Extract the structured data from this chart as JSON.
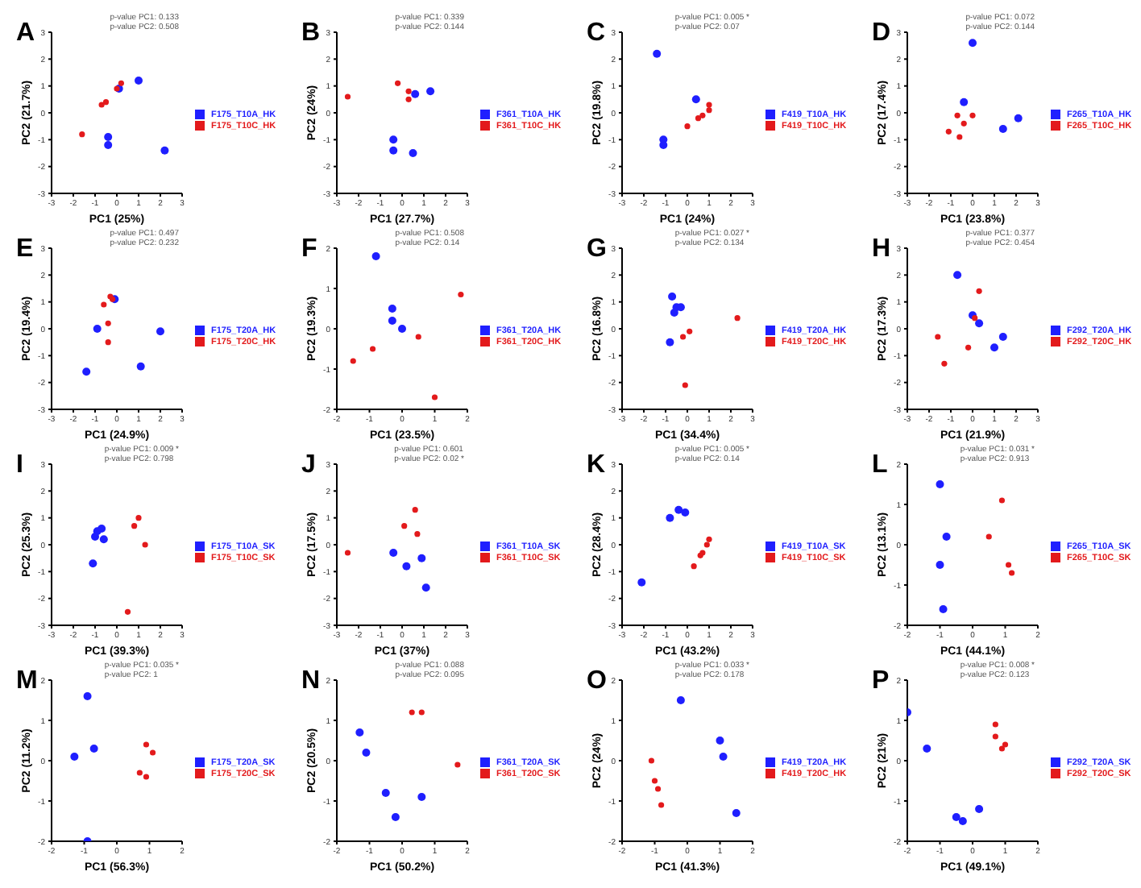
{
  "chart_data": [
    {
      "type": "scatter",
      "title": "A",
      "xlabel": "PC1 (25%)",
      "ylabel": "PC2 (21.7%)",
      "annotations": [
        "p-value PC1: 0.133",
        "p-value PC2: 0.508"
      ],
      "xlim": [
        -3,
        3
      ],
      "ylim": [
        -3,
        3
      ],
      "xticks": [
        -3,
        -2,
        -1,
        0,
        1,
        2,
        3
      ],
      "yticks": [
        -3,
        -2,
        -1,
        0,
        1,
        2,
        3
      ],
      "legend": "right",
      "marker": "circle",
      "series": [
        {
          "name": "F175_T10A_HK",
          "color": "#1f1fff",
          "x": [
            1,
            2.2,
            -0.4,
            -0.4,
            0.1
          ],
          "values": [
            1.2,
            -1.4,
            -0.9,
            -1.2,
            0.9
          ]
        },
        {
          "name": "F175_T10C_HK",
          "color": "#e31a1c",
          "x": [
            -1.6,
            -0.7,
            -0.5,
            0,
            0.2
          ],
          "values": [
            -0.8,
            0.3,
            0.4,
            0.9,
            1.1
          ]
        }
      ]
    },
    {
      "type": "scatter",
      "title": "B",
      "xlabel": "PC1 (27.7%)",
      "ylabel": "PC2 (24%)",
      "annotations": [
        "p-value PC1: 0.339",
        "p-value PC2: 0.144"
      ],
      "xlim": [
        -3,
        3
      ],
      "ylim": [
        -3,
        3
      ],
      "xticks": [
        -3,
        -2,
        -1,
        0,
        1,
        2,
        3
      ],
      "yticks": [
        -3,
        -2,
        -1,
        0,
        1,
        2,
        3
      ],
      "legend": "right",
      "marker": "circle",
      "series": [
        {
          "name": "F361_T10A_HK",
          "color": "#1f1fff",
          "x": [
            1.3,
            0.5,
            -0.4,
            -0.4,
            0.6
          ],
          "values": [
            0.8,
            -1.5,
            -1,
            -1.4,
            0.7
          ]
        },
        {
          "name": "F361_T10C_HK",
          "color": "#e31a1c",
          "x": [
            -2.5,
            -0.2,
            0.3,
            0.3
          ],
          "values": [
            0.6,
            1.1,
            0.8,
            0.5
          ]
        }
      ]
    },
    {
      "type": "scatter",
      "title": "C",
      "xlabel": "PC1 (24%)",
      "ylabel": "PC2 (19.8%)",
      "annotations": [
        "p-value PC1: 0.005 *",
        "p-value PC2: 0.07"
      ],
      "xlim": [
        -3,
        3
      ],
      "ylim": [
        -3,
        3
      ],
      "xticks": [
        -3,
        -2,
        -1,
        0,
        1,
        2,
        3
      ],
      "yticks": [
        -3,
        -2,
        -1,
        0,
        1,
        2,
        3
      ],
      "legend": "right",
      "marker": "circle",
      "series": [
        {
          "name": "F419_T10A_HK",
          "color": "#1f1fff",
          "x": [
            -1.4,
            0.4,
            -1.1,
            -1.1
          ],
          "values": [
            2.2,
            0.5,
            -1,
            -1.2
          ]
        },
        {
          "name": "F419_T10C_HK",
          "color": "#e31a1c",
          "x": [
            0,
            0.5,
            1,
            1,
            0.7
          ],
          "values": [
            -0.5,
            -0.2,
            0.1,
            0.3,
            -0.1
          ]
        }
      ]
    },
    {
      "type": "scatter",
      "title": "D",
      "xlabel": "PC1 (23.8%)",
      "ylabel": "PC2 (17.4%)",
      "annotations": [
        "p-value PC1: 0.072",
        "p-value PC2: 0.144"
      ],
      "xlim": [
        -3,
        3
      ],
      "ylim": [
        -3,
        3
      ],
      "xticks": [
        -3,
        -2,
        -1,
        0,
        1,
        2,
        3
      ],
      "yticks": [
        -3,
        -2,
        -1,
        0,
        1,
        2,
        3
      ],
      "legend": "right",
      "marker": "circle",
      "series": [
        {
          "name": "F265_T10A_HK",
          "color": "#1f1fff",
          "x": [
            0,
            2.1,
            1.4,
            -0.4
          ],
          "values": [
            2.6,
            -0.2,
            -0.6,
            0.4
          ]
        },
        {
          "name": "F265_T10C_HK",
          "color": "#e31a1c",
          "x": [
            -1.1,
            -0.7,
            -0.6,
            0,
            -0.4
          ],
          "values": [
            -0.7,
            -0.1,
            -0.9,
            -0.1,
            -0.4
          ]
        }
      ]
    },
    {
      "type": "scatter",
      "title": "E",
      "xlabel": "PC1 (24.9%)",
      "ylabel": "PC2 (19.4%)",
      "annotations": [
        "p-value PC1: 0.497",
        "p-value PC2: 0.232"
      ],
      "xlim": [
        -3,
        3
      ],
      "ylim": [
        -3,
        3
      ],
      "xticks": [
        -3,
        -2,
        -1,
        0,
        1,
        2,
        3
      ],
      "yticks": [
        -3,
        -2,
        -1,
        0,
        1,
        2,
        3
      ],
      "legend": "right",
      "marker": "circle",
      "series": [
        {
          "name": "F175_T20A_HK",
          "color": "#1f1fff",
          "x": [
            -1.4,
            2,
            1.1,
            -0.9,
            -0.1
          ],
          "values": [
            -1.6,
            -0.1,
            -1.4,
            0,
            1.1
          ]
        },
        {
          "name": "F175_T20C_HK",
          "color": "#e31a1c",
          "x": [
            -0.6,
            -0.3,
            -0.4,
            -0.4,
            -0.2
          ],
          "values": [
            0.9,
            1.2,
            -0.5,
            0.2,
            1.1
          ]
        }
      ]
    },
    {
      "type": "scatter",
      "title": "F",
      "xlabel": "PC1 (23.5%)",
      "ylabel": "PC2 (19.3%)",
      "annotations": [
        "p-value PC1: 0.508",
        "p-value PC2: 0.14"
      ],
      "xlim": [
        -2,
        2
      ],
      "ylim": [
        -2,
        2
      ],
      "xticks": [
        -2,
        -1,
        0,
        1,
        2
      ],
      "yticks": [
        -2,
        -1,
        0,
        1,
        2
      ],
      "legend": "right",
      "marker": "circle",
      "series": [
        {
          "name": "F361_T20A_HK",
          "color": "#1f1fff",
          "x": [
            -0.8,
            -0.3,
            0,
            -0.3
          ],
          "values": [
            1.8,
            0.2,
            0,
            0.5
          ]
        },
        {
          "name": "F361_T20C_HK",
          "color": "#e31a1c",
          "x": [
            -1.5,
            -0.9,
            0.5,
            1.8,
            1
          ],
          "values": [
            -0.8,
            -0.5,
            -0.2,
            0.85,
            -1.7
          ]
        }
      ]
    },
    {
      "type": "scatter",
      "title": "G",
      "xlabel": "PC1 (34.4%)",
      "ylabel": "PC2 (16.8%)",
      "annotations": [
        "p-value PC1: 0.027 *",
        "p-value PC2: 0.134"
      ],
      "xlim": [
        -3,
        3
      ],
      "ylim": [
        -3,
        3
      ],
      "xticks": [
        -3,
        -2,
        -1,
        0,
        1,
        2,
        3
      ],
      "yticks": [
        -3,
        -2,
        -1,
        0,
        1,
        2,
        3
      ],
      "legend": "right",
      "marker": "circle",
      "series": [
        {
          "name": "F419_T20A_HK",
          "color": "#1f1fff",
          "x": [
            -0.7,
            -0.5,
            -0.3,
            -0.8,
            -0.6
          ],
          "values": [
            1.2,
            0.8,
            0.8,
            -0.5,
            0.6
          ]
        },
        {
          "name": "F419_T20C_HK",
          "color": "#e31a1c",
          "x": [
            -0.2,
            0.1,
            2.3,
            -0.1
          ],
          "values": [
            -0.3,
            -0.1,
            0.4,
            -2.1
          ]
        }
      ]
    },
    {
      "type": "scatter",
      "title": "H",
      "xlabel": "PC1 (21.9%)",
      "ylabel": "PC2 (17.3%)",
      "annotations": [
        "p-value PC1: 0.377",
        "p-value PC2: 0.454"
      ],
      "xlim": [
        -3,
        3
      ],
      "ylim": [
        -3,
        3
      ],
      "xticks": [
        -3,
        -2,
        -1,
        0,
        1,
        2,
        3
      ],
      "yticks": [
        -3,
        -2,
        -1,
        0,
        1,
        2,
        3
      ],
      "legend": "right",
      "marker": "circle",
      "series": [
        {
          "name": "F292_T20A_HK",
          "color": "#1f1fff",
          "x": [
            -0.7,
            1.4,
            1,
            0,
            0.3
          ],
          "values": [
            2,
            -0.3,
            -0.7,
            0.5,
            0.2
          ]
        },
        {
          "name": "F292_T20C_HK",
          "color": "#e31a1c",
          "x": [
            -1.6,
            -1.3,
            0.3,
            -0.2,
            0.1
          ],
          "values": [
            -0.3,
            -1.3,
            1.4,
            -0.7,
            0.4
          ]
        }
      ]
    },
    {
      "type": "scatter",
      "title": "I",
      "xlabel": "PC1 (39.3%)",
      "ylabel": "PC2 (25.3%)",
      "annotations": [
        "p-value PC1: 0.009 *",
        "p-value PC2: 0.798"
      ],
      "xlim": [
        -3,
        3
      ],
      "ylim": [
        -3,
        3
      ],
      "xticks": [
        -3,
        -2,
        -1,
        0,
        1,
        2,
        3
      ],
      "yticks": [
        -3,
        -2,
        -1,
        0,
        1,
        2,
        3
      ],
      "legend": "right",
      "marker": "circle",
      "series": [
        {
          "name": "F175_T10A_SK",
          "color": "#1f1fff",
          "x": [
            -1.1,
            -0.9,
            -0.7,
            -0.6,
            -1
          ],
          "values": [
            -0.7,
            0.5,
            0.6,
            0.2,
            0.3
          ]
        },
        {
          "name": "F175_T10C_SK",
          "color": "#e31a1c",
          "x": [
            0.5,
            1.3,
            1,
            0.8
          ],
          "values": [
            -2.5,
            0,
            1,
            0.7
          ]
        }
      ]
    },
    {
      "type": "scatter",
      "title": "J",
      "xlabel": "PC1 (37%)",
      "ylabel": "PC2 (17.5%)",
      "annotations": [
        "p-value PC1: 0.601",
        "p-value PC2: 0.02 *"
      ],
      "xlim": [
        -3,
        3
      ],
      "ylim": [
        -3,
        3
      ],
      "xticks": [
        -3,
        -2,
        -1,
        0,
        1,
        2,
        3
      ],
      "yticks": [
        -3,
        -2,
        -1,
        0,
        1,
        2,
        3
      ],
      "legend": "right",
      "marker": "circle",
      "series": [
        {
          "name": "F361_T10A_SK",
          "color": "#1f1fff",
          "x": [
            -0.4,
            0.9,
            1.1,
            0.2
          ],
          "values": [
            -0.3,
            -0.5,
            -1.6,
            -0.8
          ]
        },
        {
          "name": "F361_T10C_SK",
          "color": "#e31a1c",
          "x": [
            -2.5,
            0.6,
            0.7,
            0.1
          ],
          "values": [
            -0.3,
            1.3,
            0.4,
            0.7
          ]
        }
      ]
    },
    {
      "type": "scatter",
      "title": "K",
      "xlabel": "PC1 (43.2%)",
      "ylabel": "PC2 (28.4%)",
      "annotations": [
        "p-value PC1: 0.005 *",
        "p-value PC2: 0.14"
      ],
      "xlim": [
        -3,
        3
      ],
      "ylim": [
        -3,
        3
      ],
      "xticks": [
        -3,
        -2,
        -1,
        0,
        1,
        2,
        3
      ],
      "yticks": [
        -3,
        -2,
        -1,
        0,
        1,
        2,
        3
      ],
      "legend": "right",
      "marker": "circle",
      "series": [
        {
          "name": "F419_T10A_SK",
          "color": "#1f1fff",
          "x": [
            -2.1,
            -0.8,
            -0.4,
            -0.1
          ],
          "values": [
            -1.4,
            1,
            1.3,
            1.2
          ]
        },
        {
          "name": "F419_T10C_SK",
          "color": "#e31a1c",
          "x": [
            0.3,
            0.6,
            0.9,
            1,
            0.7
          ],
          "values": [
            -0.8,
            -0.4,
            0,
            0.2,
            -0.3
          ]
        }
      ]
    },
    {
      "type": "scatter",
      "title": "L",
      "xlabel": "PC1 (44.1%)",
      "ylabel": "PC2 (13.1%)",
      "annotations": [
        "p-value PC1: 0.031 *",
        "p-value PC2: 0.913"
      ],
      "xlim": [
        -2,
        2
      ],
      "ylim": [
        -2,
        2
      ],
      "xticks": [
        -2,
        -1,
        0,
        1,
        2
      ],
      "yticks": [
        -2,
        -1,
        0,
        1,
        2
      ],
      "legend": "right",
      "marker": "circle",
      "series": [
        {
          "name": "F265_T10A_SK",
          "color": "#1f1fff",
          "x": [
            -1,
            -0.8,
            -1,
            -0.9
          ],
          "values": [
            1.5,
            0.2,
            -0.5,
            -1.6
          ]
        },
        {
          "name": "F265_T10C_SK",
          "color": "#e31a1c",
          "x": [
            0.5,
            0.9,
            1.1,
            1.2
          ],
          "values": [
            0.2,
            1.1,
            -0.5,
            -0.7
          ]
        }
      ]
    },
    {
      "type": "scatter",
      "title": "M",
      "xlabel": "PC1 (56.3%)",
      "ylabel": "PC2 (11.2%)",
      "annotations": [
        "p-value PC1: 0.035 *",
        "p-value PC2: 1"
      ],
      "xlim": [
        -2,
        2
      ],
      "ylim": [
        -2,
        2
      ],
      "xticks": [
        -2,
        -1,
        0,
        1,
        2
      ],
      "yticks": [
        -2,
        -1,
        0,
        1,
        2
      ],
      "legend": "right",
      "marker": "circle",
      "series": [
        {
          "name": "F175_T20A_SK",
          "color": "#1f1fff",
          "x": [
            -1.3,
            -0.9,
            -0.7,
            -0.9
          ],
          "values": [
            0.1,
            1.6,
            0.3,
            -2
          ]
        },
        {
          "name": "F175_T20C_SK",
          "color": "#e31a1c",
          "x": [
            0.9,
            0.7,
            1.1,
            0.9
          ],
          "values": [
            0.4,
            -0.3,
            0.2,
            -0.4
          ]
        }
      ]
    },
    {
      "type": "scatter",
      "title": "N",
      "xlabel": "PC1 (50.2%)",
      "ylabel": "PC2 (20.5%)",
      "annotations": [
        "p-value PC1: 0.088",
        "p-value PC2: 0.095"
      ],
      "xlim": [
        -2,
        2
      ],
      "ylim": [
        -2,
        2
      ],
      "xticks": [
        -2,
        -1,
        0,
        1,
        2
      ],
      "yticks": [
        -2,
        -1,
        0,
        1,
        2
      ],
      "legend": "right",
      "marker": "circle",
      "series": [
        {
          "name": "F361_T20A_SK",
          "color": "#1f1fff",
          "x": [
            -1.3,
            -1.1,
            -0.5,
            -0.2,
            0.6
          ],
          "values": [
            0.7,
            0.2,
            -0.8,
            -1.4,
            -0.9
          ]
        },
        {
          "name": "F361_T20C_SK",
          "color": "#e31a1c",
          "x": [
            0.3,
            0.6,
            1.7
          ],
          "values": [
            1.2,
            1.2,
            -0.1
          ]
        }
      ]
    },
    {
      "type": "scatter",
      "title": "O",
      "xlabel": "PC1 (41.3%)",
      "ylabel": "PC2 (24%)",
      "annotations": [
        "p-value PC1: 0.033 *",
        "p-value PC2: 0.178"
      ],
      "xlim": [
        -2,
        2
      ],
      "ylim": [
        -2,
        2
      ],
      "xticks": [
        -2,
        -1,
        0,
        1,
        2
      ],
      "yticks": [
        -2,
        -1,
        0,
        1,
        2
      ],
      "legend": "right",
      "marker": "circle",
      "series": [
        {
          "name": "F419_T20A_HK",
          "color": "#1f1fff",
          "x": [
            -0.2,
            1,
            1.1,
            1.5
          ],
          "values": [
            1.5,
            0.5,
            0.1,
            -1.3
          ]
        },
        {
          "name": "F419_T20C_HK",
          "color": "#e31a1c",
          "x": [
            -1.1,
            -1,
            -0.8,
            -0.9
          ],
          "values": [
            0,
            -0.5,
            -1.1,
            -0.7
          ]
        }
      ]
    },
    {
      "type": "scatter",
      "title": "P",
      "xlabel": "PC1 (49.1%)",
      "ylabel": "PC2 (21%)",
      "annotations": [
        "p-value PC1: 0.008 *",
        "p-value PC2: 0.123"
      ],
      "xlim": [
        -2,
        2
      ],
      "ylim": [
        -2,
        2
      ],
      "xticks": [
        -2,
        -1,
        0,
        1,
        2
      ],
      "yticks": [
        -2,
        -1,
        0,
        1,
        2
      ],
      "legend": "right",
      "marker": "circle",
      "series": [
        {
          "name": "F292_T20A_SK",
          "color": "#1f1fff",
          "x": [
            -2,
            -1.4,
            -0.5,
            0.2,
            -0.3
          ],
          "values": [
            1.2,
            0.3,
            -1.4,
            -1.2,
            -1.5
          ]
        },
        {
          "name": "F292_T20C_SK",
          "color": "#e31a1c",
          "x": [
            0.7,
            0.9,
            1,
            0.7
          ],
          "values": [
            0.9,
            0.3,
            0.4,
            0.6
          ]
        }
      ]
    }
  ]
}
